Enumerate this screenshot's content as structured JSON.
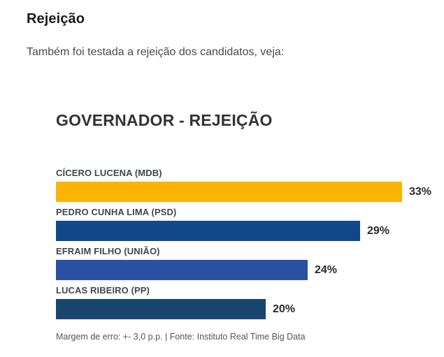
{
  "page": {
    "heading": "Rejeição",
    "subtitle": "Também foi testada a rejeição dos candidatos, veja:"
  },
  "chart_data": {
    "type": "bar",
    "orientation": "horizontal",
    "title": "GOVERNADOR - REJEIÇÃO",
    "categories": [
      "CÍCERO LUCENA (MDB)",
      "PEDRO CUNHA LIMA (PSD)",
      "EFRAIM FILHO (UNIÃO)",
      "LUCAS RIBEIRO (PP)"
    ],
    "values": [
      33,
      29,
      24,
      20
    ],
    "value_labels": [
      "33%",
      "29%",
      "24%",
      "20%"
    ],
    "bar_colors": [
      "#FCB303",
      "#114889",
      "#2B50A1",
      "#17456E"
    ],
    "xlim": [
      0,
      36
    ],
    "grid": false,
    "legend": "none",
    "footnote": "Margem de erro: +- 3,0 p.p. | Fonte: Instituto Real Time Big Data"
  }
}
